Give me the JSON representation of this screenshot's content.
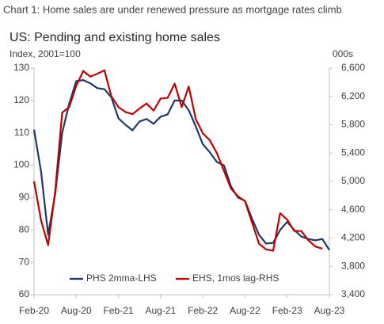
{
  "chart_data": {
    "type": "line",
    "title": "Chart 1: Home sales are under renewed pressure as mortgage rates climb",
    "subtitle": "US: Pending and existing home sales",
    "y_label": "Index, 2001=100",
    "y2_label": "000s",
    "categories": [
      "Feb-20",
      null,
      null,
      null,
      null,
      null,
      "Aug-20",
      null,
      null,
      null,
      null,
      null,
      "Feb-21",
      null,
      null,
      null,
      null,
      null,
      "Aug-21",
      null,
      null,
      null,
      null,
      null,
      "Feb-22",
      null,
      null,
      null,
      null,
      null,
      "Aug-22",
      null,
      null,
      null,
      null,
      null,
      "Feb-23",
      null,
      null,
      null,
      null,
      null,
      "Aug-23"
    ],
    "series": [
      {
        "name": "PHS 2mma-LHS",
        "color": "#1f3864",
        "axis": "y",
        "values": [
          111,
          98,
          78.5,
          91,
          110,
          119,
          126,
          126.3,
          125.3,
          123.8,
          123.5,
          121,
          114.5,
          112.5,
          110.8,
          113.5,
          114.3,
          112.8,
          115,
          115.7,
          120,
          120,
          117,
          112,
          106.5,
          104,
          101,
          100,
          93.5,
          90,
          89,
          83.5,
          78.5,
          75.8,
          76,
          80,
          82.5,
          80,
          78,
          77.2,
          76.8,
          77.2,
          73.8
        ]
      },
      {
        "name": "EHS, 1mos lag-RHS",
        "color": "#c00000",
        "axis": "y2",
        "values": [
          5000,
          4450,
          4100,
          4850,
          5970,
          6050,
          6350,
          6560,
          6480,
          6520,
          6570,
          6200,
          6050,
          5980,
          5950,
          6030,
          6100,
          6000,
          6170,
          6180,
          6380,
          6050,
          6340,
          5880,
          5680,
          5580,
          5400,
          5150,
          4900,
          4790,
          4720,
          4420,
          4120,
          4040,
          4020,
          4550,
          4460,
          4300,
          4300,
          4170,
          4080,
          4050,
          null
        ]
      }
    ],
    "ylim": [
      60,
      130
    ],
    "yticks": [
      60,
      70,
      80,
      90,
      100,
      110,
      120,
      130
    ],
    "y2lim": [
      3400,
      6600
    ],
    "y2ticks": [
      {
        "value": 3400,
        "label": "3,400"
      },
      {
        "value": 3800,
        "label": "3,800"
      },
      {
        "value": 4200,
        "label": "4,200"
      },
      {
        "value": 4600,
        "label": "4,600"
      },
      {
        "value": 5000,
        "label": "5,000"
      },
      {
        "value": 5400,
        "label": "5,400"
      },
      {
        "value": 5800,
        "label": "5,800"
      },
      {
        "value": 6200,
        "label": "6,200"
      },
      {
        "value": 6600,
        "label": "6,600"
      }
    ],
    "grid": false,
    "legend": "bottom"
  }
}
